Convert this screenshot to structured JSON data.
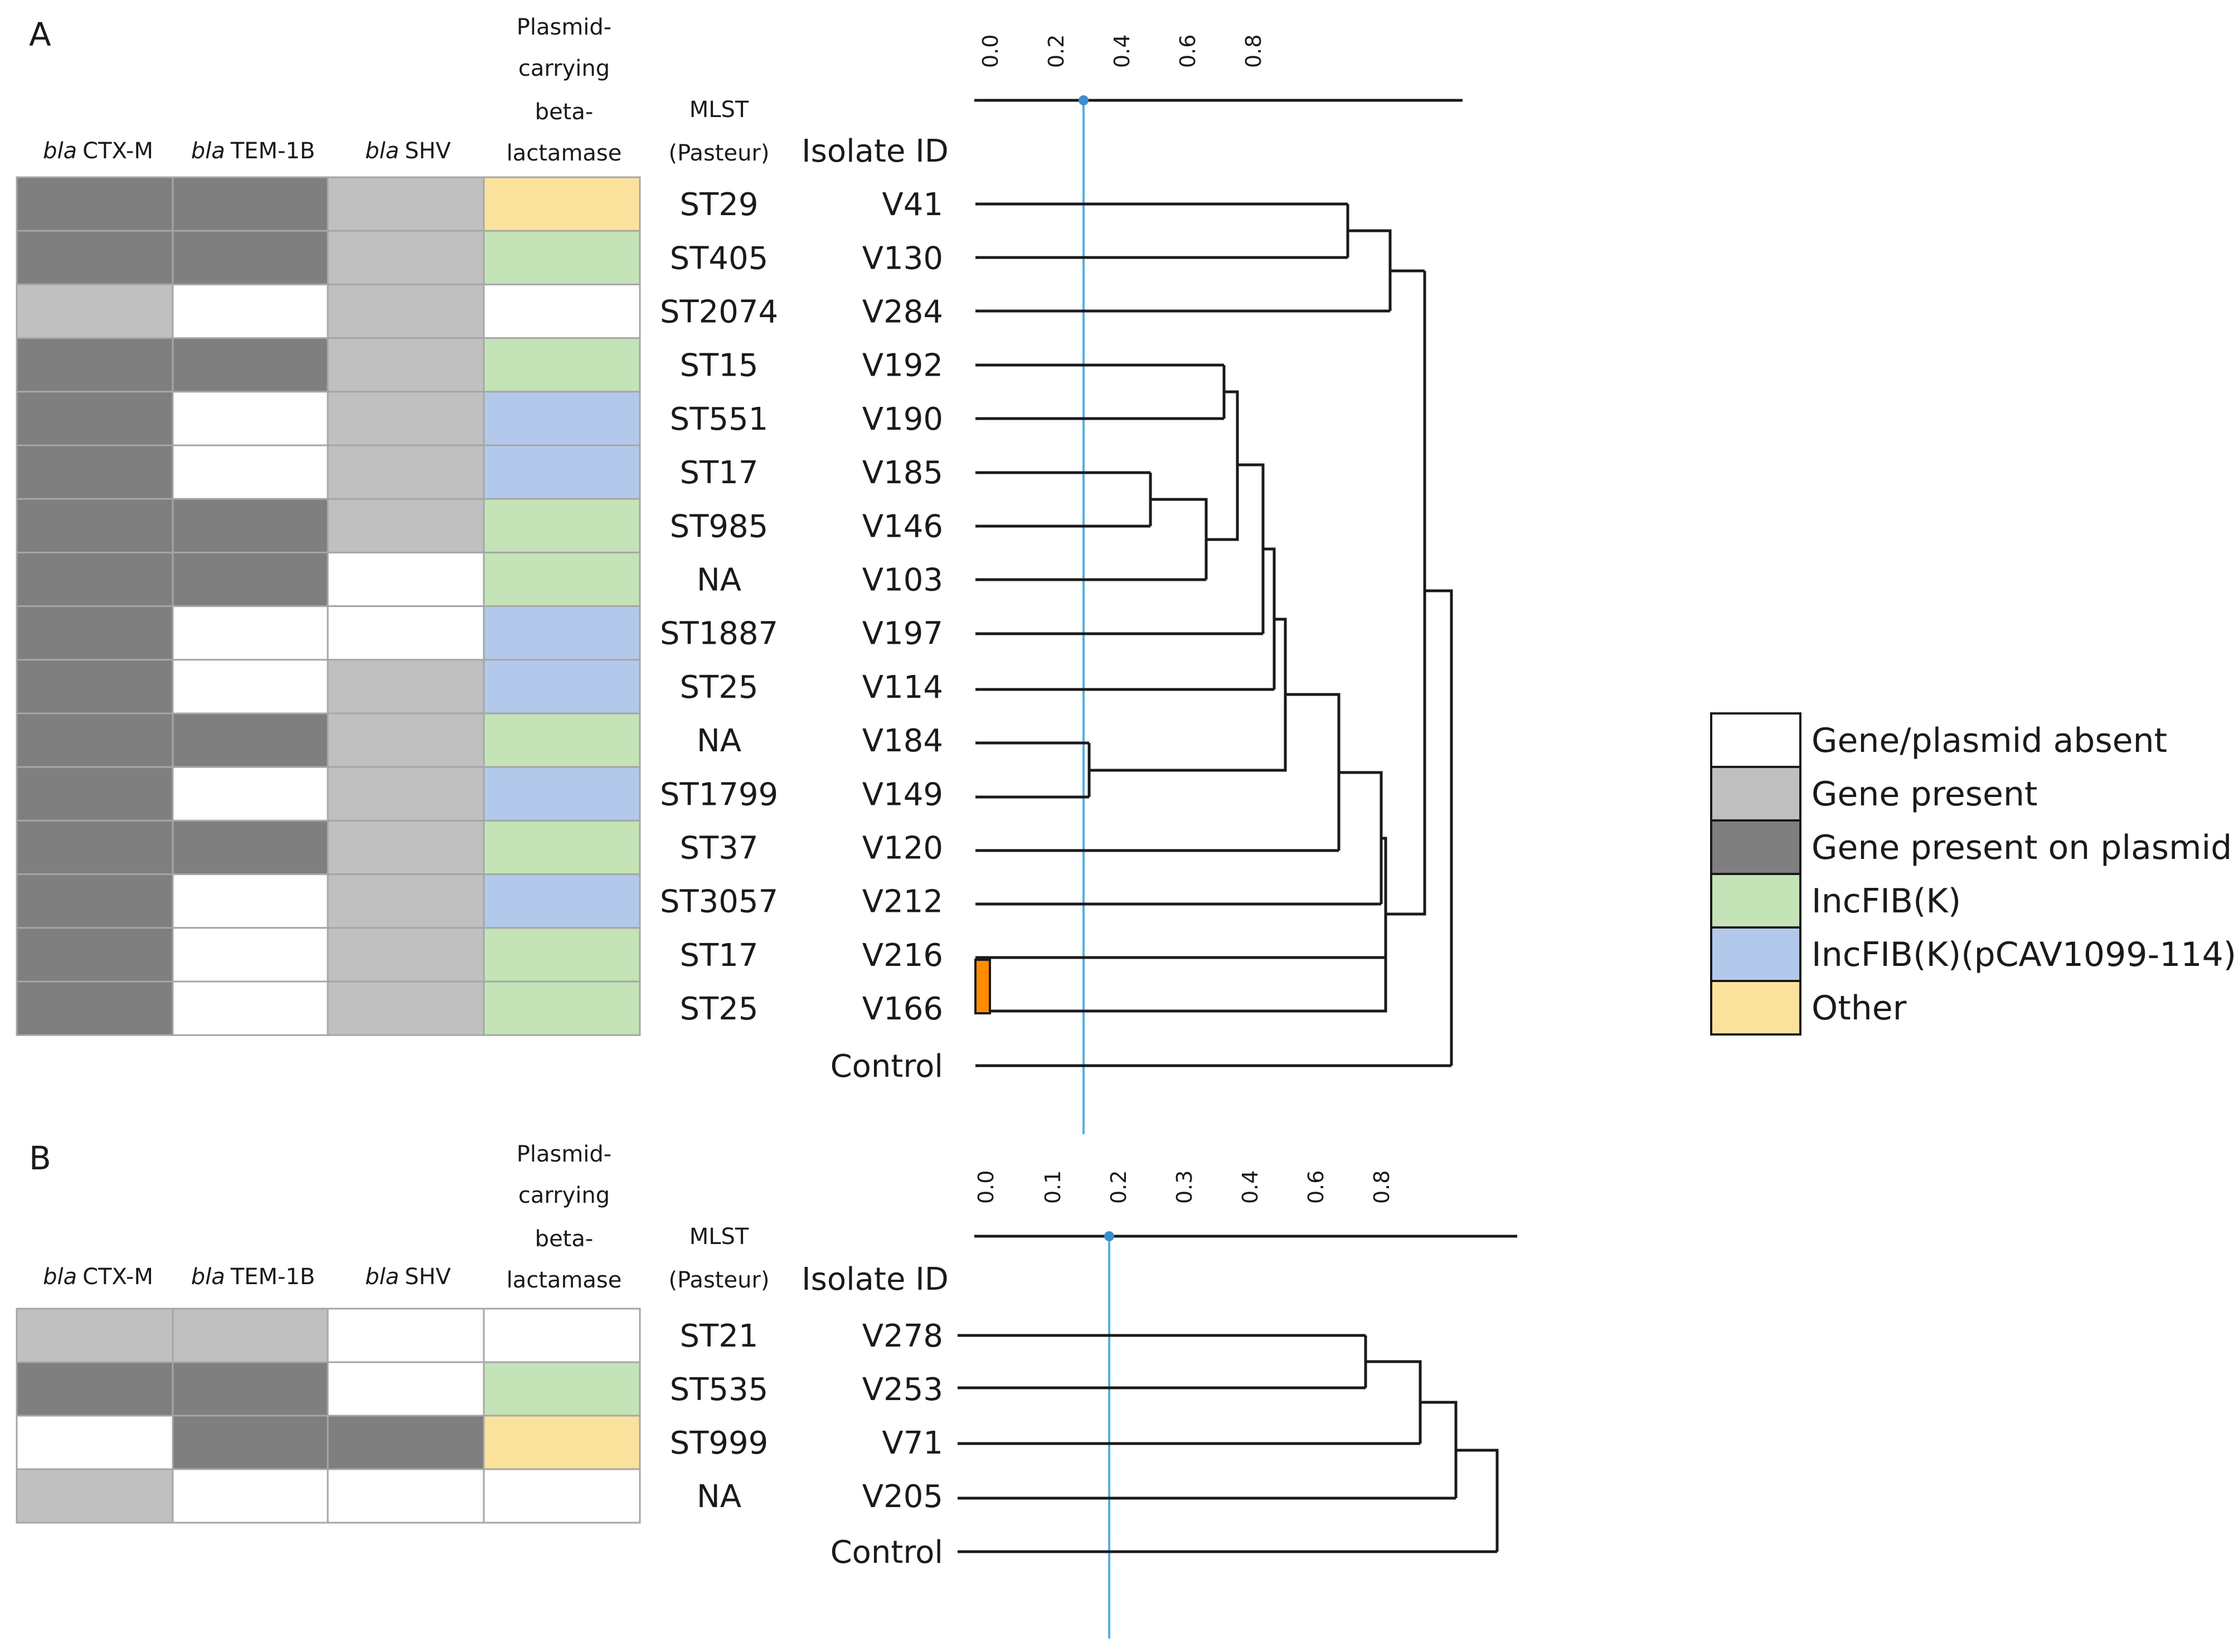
{
  "legend": {
    "title": "",
    "items": [
      {
        "key": "absent",
        "label": "Gene/plasmid absent",
        "color": "#ffffff"
      },
      {
        "key": "present",
        "label": "Gene present",
        "color": "#c0c0c0"
      },
      {
        "key": "plasmid",
        "label": "Gene present on plasmid",
        "color": "#7f7f7f"
      },
      {
        "key": "incfibk",
        "label": "IncFIB(K)",
        "color": "#c4e3b7"
      },
      {
        "key": "pcav",
        "label": "IncFIB(K)(pCAV1099-114)",
        "color": "#b3c9ec"
      },
      {
        "key": "other",
        "label": "Other",
        "color": "#fbe29c"
      }
    ]
  },
  "panels": [
    {
      "label": "A",
      "headers": {
        "ctxm_italic": "bla",
        "ctxm": "CTX-M",
        "tem_italic": "bla",
        "tem": "TEM-1B",
        "shv_italic": "bla",
        "shv": "SHV",
        "plasmid_lines": [
          "Plasmid-",
          "carrying",
          "beta-",
          "lactamase"
        ],
        "mlst_lines": [
          "MLST",
          "(Pasteur)"
        ],
        "isolate": "Isolate ID"
      },
      "axis_ticks": [
        "0.0",
        "0.2",
        "0.4",
        "0.6",
        "0.8"
      ],
      "rows": [
        {
          "mlst": "ST29",
          "id": "V41",
          "cells": [
            "plasmid",
            "plasmid",
            "present",
            "other"
          ]
        },
        {
          "mlst": "ST405",
          "id": "V130",
          "cells": [
            "plasmid",
            "plasmid",
            "present",
            "incfibk"
          ]
        },
        {
          "mlst": "ST2074",
          "id": "V284",
          "cells": [
            "present",
            "absent",
            "present",
            "absent"
          ]
        },
        {
          "mlst": "ST15",
          "id": "V192",
          "cells": [
            "plasmid",
            "plasmid",
            "present",
            "incfibk"
          ]
        },
        {
          "mlst": "ST551",
          "id": "V190",
          "cells": [
            "plasmid",
            "absent",
            "present",
            "pcav"
          ]
        },
        {
          "mlst": "ST17",
          "id": "V185",
          "cells": [
            "plasmid",
            "absent",
            "present",
            "pcav"
          ]
        },
        {
          "mlst": "ST985",
          "id": "V146",
          "cells": [
            "plasmid",
            "plasmid",
            "present",
            "incfibk"
          ]
        },
        {
          "mlst": "NA",
          "id": "V103",
          "cells": [
            "plasmid",
            "plasmid",
            "absent",
            "incfibk"
          ]
        },
        {
          "mlst": "ST1887",
          "id": "V197",
          "cells": [
            "plasmid",
            "absent",
            "absent",
            "pcav"
          ]
        },
        {
          "mlst": "ST25",
          "id": "V114",
          "cells": [
            "plasmid",
            "absent",
            "present",
            "pcav"
          ]
        },
        {
          "mlst": "NA",
          "id": "V184",
          "cells": [
            "plasmid",
            "plasmid",
            "present",
            "incfibk"
          ]
        },
        {
          "mlst": "ST1799",
          "id": "V149",
          "cells": [
            "plasmid",
            "absent",
            "present",
            "pcav"
          ]
        },
        {
          "mlst": "ST37",
          "id": "V120",
          "cells": [
            "plasmid",
            "plasmid",
            "present",
            "incfibk"
          ]
        },
        {
          "mlst": "ST3057",
          "id": "V212",
          "cells": [
            "plasmid",
            "absent",
            "present",
            "pcav"
          ]
        },
        {
          "mlst": "ST17",
          "id": "V216",
          "cells": [
            "plasmid",
            "absent",
            "present",
            "incfibk"
          ]
        },
        {
          "mlst": "ST25",
          "id": "V166",
          "cells": [
            "plasmid",
            "absent",
            "present",
            "incfibk"
          ]
        }
      ],
      "control": "Control"
    },
    {
      "label": "B",
      "headers": {
        "ctxm_italic": "bla",
        "ctxm": "CTX-M",
        "tem_italic": "bla",
        "tem": "TEM-1B",
        "shv_italic": "bla",
        "shv": "SHV",
        "plasmid_lines": [
          "Plasmid-",
          "carrying",
          "beta-",
          "lactamase"
        ],
        "mlst_lines": [
          "MLST",
          "(Pasteur)"
        ],
        "isolate": "Isolate ID"
      },
      "axis_ticks": [
        "0.0",
        "0.1",
        "0.2",
        "0.3",
        "0.4",
        "0.6",
        "0.8"
      ],
      "rows": [
        {
          "mlst": "ST21",
          "id": "V278",
          "cells": [
            "present",
            "present",
            "absent",
            "absent"
          ]
        },
        {
          "mlst": "ST535",
          "id": "V253",
          "cells": [
            "plasmid",
            "plasmid",
            "absent",
            "incfibk"
          ]
        },
        {
          "mlst": "ST999",
          "id": "V71",
          "cells": [
            "absent",
            "plasmid",
            "plasmid",
            "other"
          ]
        },
        {
          "mlst": "NA",
          "id": "V205",
          "cells": [
            "present",
            "absent",
            "absent",
            "absent"
          ]
        }
      ],
      "control": "Control"
    }
  ],
  "colors": {
    "grid_border": "#a6a6a6",
    "tree_line": "#1a1a1a",
    "cutoff_line": "#5aaee0",
    "highlight": "#ff8c00"
  }
}
